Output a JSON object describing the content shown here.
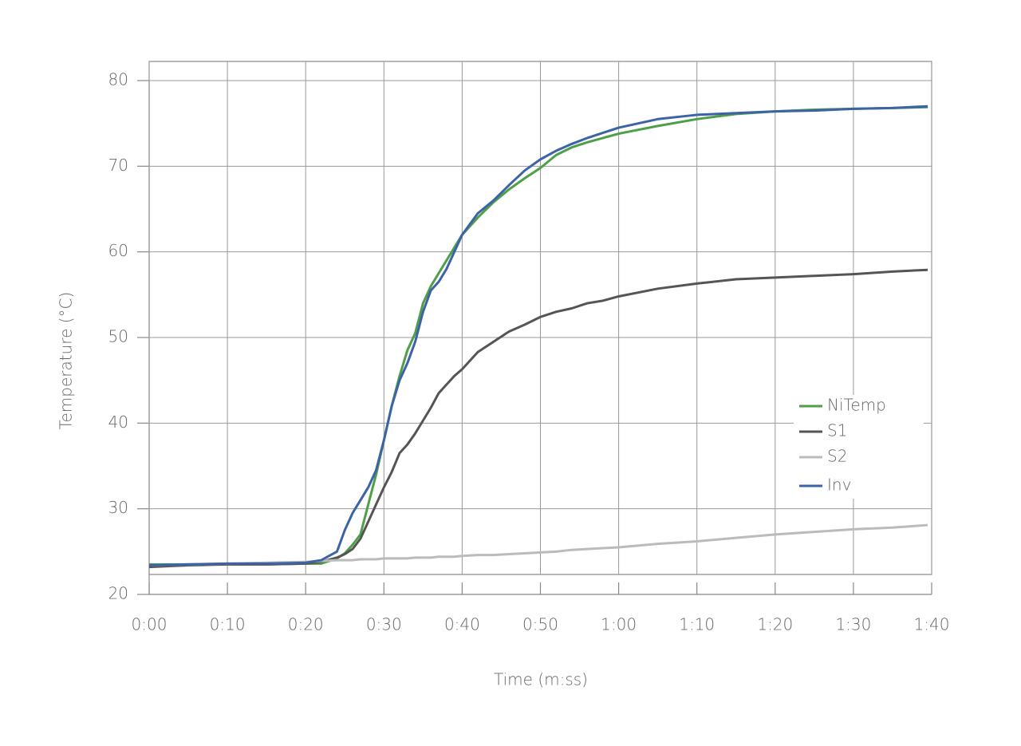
{
  "chart_data": {
    "type": "line",
    "x_label": "Time (m:ss)",
    "y_label": "Temperature (°C)",
    "x": [
      0,
      5,
      10,
      15,
      20,
      22,
      24,
      25,
      26,
      27,
      28,
      29,
      30,
      31,
      32,
      33,
      34,
      35,
      36,
      37,
      38,
      39,
      40,
      42,
      44,
      46,
      48,
      50,
      52,
      54,
      56,
      58,
      60,
      65,
      70,
      75,
      80,
      85,
      90,
      95,
      99.5
    ],
    "series": [
      {
        "name": "NiTemp",
        "color": "#4e9f47",
        "values": [
          23.5,
          23.5,
          23.5,
          23.5,
          23.6,
          23.6,
          24.2,
          24.8,
          25.8,
          27,
          30.5,
          34,
          38,
          42,
          45.5,
          48.5,
          50.5,
          54,
          56,
          57.5,
          59,
          60.5,
          62,
          64,
          65.8,
          67.3,
          68.6,
          69.8,
          71.3,
          72.2,
          72.8,
          73.3,
          73.8,
          74.7,
          75.5,
          76.1,
          76.4,
          76.6,
          76.7,
          76.8,
          76.9
        ]
      },
      {
        "name": "S1",
        "color": "#555555",
        "values": [
          23.2,
          23.4,
          23.5,
          23.5,
          23.6,
          23.8,
          24.3,
          24.7,
          25.3,
          26.5,
          28.5,
          30.5,
          32.5,
          34.3,
          36.5,
          37.5,
          38.8,
          40.3,
          41.8,
          43.5,
          44.5,
          45.5,
          46.3,
          48.3,
          49.5,
          50.7,
          51.5,
          52.4,
          53,
          53.4,
          54,
          54.3,
          54.8,
          55.7,
          56.3,
          56.8,
          57,
          57.2,
          57.4,
          57.7,
          57.9
        ]
      },
      {
        "name": "S2",
        "color": "#bbbbbb",
        "values": [
          23.4,
          23.5,
          23.6,
          23.7,
          23.8,
          23.9,
          24,
          24,
          24,
          24.1,
          24.1,
          24.1,
          24.2,
          24.2,
          24.2,
          24.2,
          24.3,
          24.3,
          24.3,
          24.4,
          24.4,
          24.4,
          24.5,
          24.6,
          24.6,
          24.7,
          24.8,
          24.9,
          25,
          25.2,
          25.3,
          25.4,
          25.5,
          25.9,
          26.2,
          26.6,
          27,
          27.3,
          27.6,
          27.8,
          28.1
        ]
      },
      {
        "name": "Inv",
        "color": "#3d63a7",
        "values": [
          23.4,
          23.5,
          23.6,
          23.6,
          23.7,
          24,
          25,
          27.5,
          29.5,
          31,
          32.5,
          34.5,
          38,
          42,
          45,
          47,
          49.5,
          53,
          55.5,
          56.5,
          58,
          60,
          62,
          64.5,
          66,
          67.8,
          69.5,
          70.8,
          71.8,
          72.6,
          73.3,
          73.9,
          74.5,
          75.5,
          76,
          76.2,
          76.4,
          76.5,
          76.7,
          76.8,
          77
        ]
      }
    ],
    "xlim": [
      0,
      100
    ],
    "xticks": [
      {
        "value": 0,
        "label": "0:00"
      },
      {
        "value": 10,
        "label": "0:10"
      },
      {
        "value": 20,
        "label": "0:20"
      },
      {
        "value": 30,
        "label": "0:30"
      },
      {
        "value": 40,
        "label": "0:40"
      },
      {
        "value": 50,
        "label": "0:50"
      },
      {
        "value": 60,
        "label": "1:00"
      },
      {
        "value": 70,
        "label": "1:10"
      },
      {
        "value": 80,
        "label": "1:20"
      },
      {
        "value": 90,
        "label": "1:30"
      },
      {
        "value": 100,
        "label": "1:40"
      }
    ],
    "ylim": [
      20,
      80
    ],
    "yticks": [
      20,
      30,
      40,
      50,
      60,
      70,
      80
    ],
    "grid": true,
    "legend": "lower-right"
  }
}
